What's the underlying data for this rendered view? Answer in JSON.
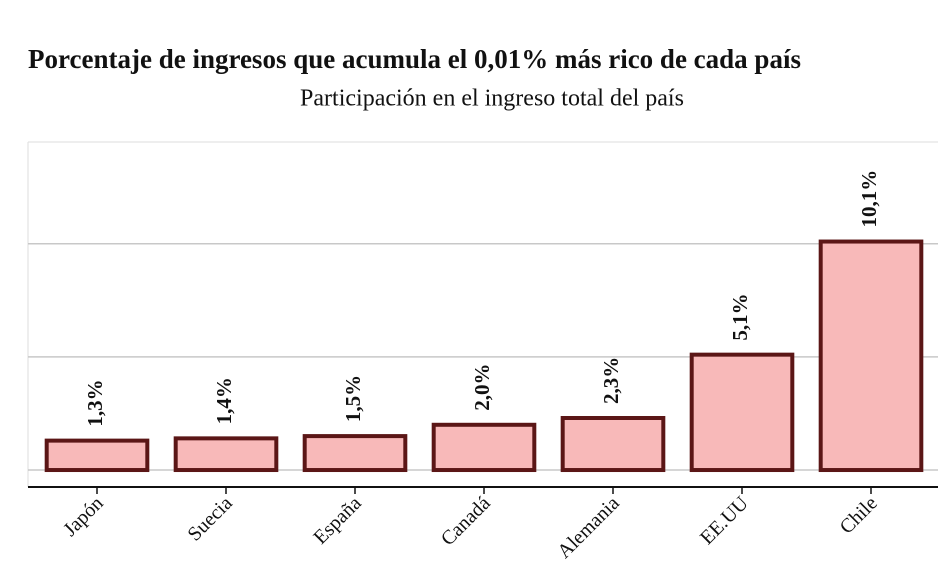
{
  "chart_data": {
    "type": "bar",
    "title": "Porcentaje de ingresos que acumula el 0,01% más rico de cada país",
    "subtitle": "Participación en el ingreso total del país",
    "categories": [
      "Japón",
      "Suecia",
      "España",
      "Canadá",
      "Alemania",
      "EE.UU",
      "Chile"
    ],
    "values": [
      1.3,
      1.4,
      1.5,
      2.0,
      2.3,
      5.1,
      10.1
    ],
    "value_labels": [
      "1,3%",
      "1,4%",
      "1,5%",
      "2,0%",
      "2,3%",
      "5,1%",
      "10,1%"
    ],
    "color": "#f8b9b9",
    "ylim": [
      -0.75,
      14.5
    ],
    "yticks": [
      0,
      5,
      10
    ],
    "grid": true
  }
}
